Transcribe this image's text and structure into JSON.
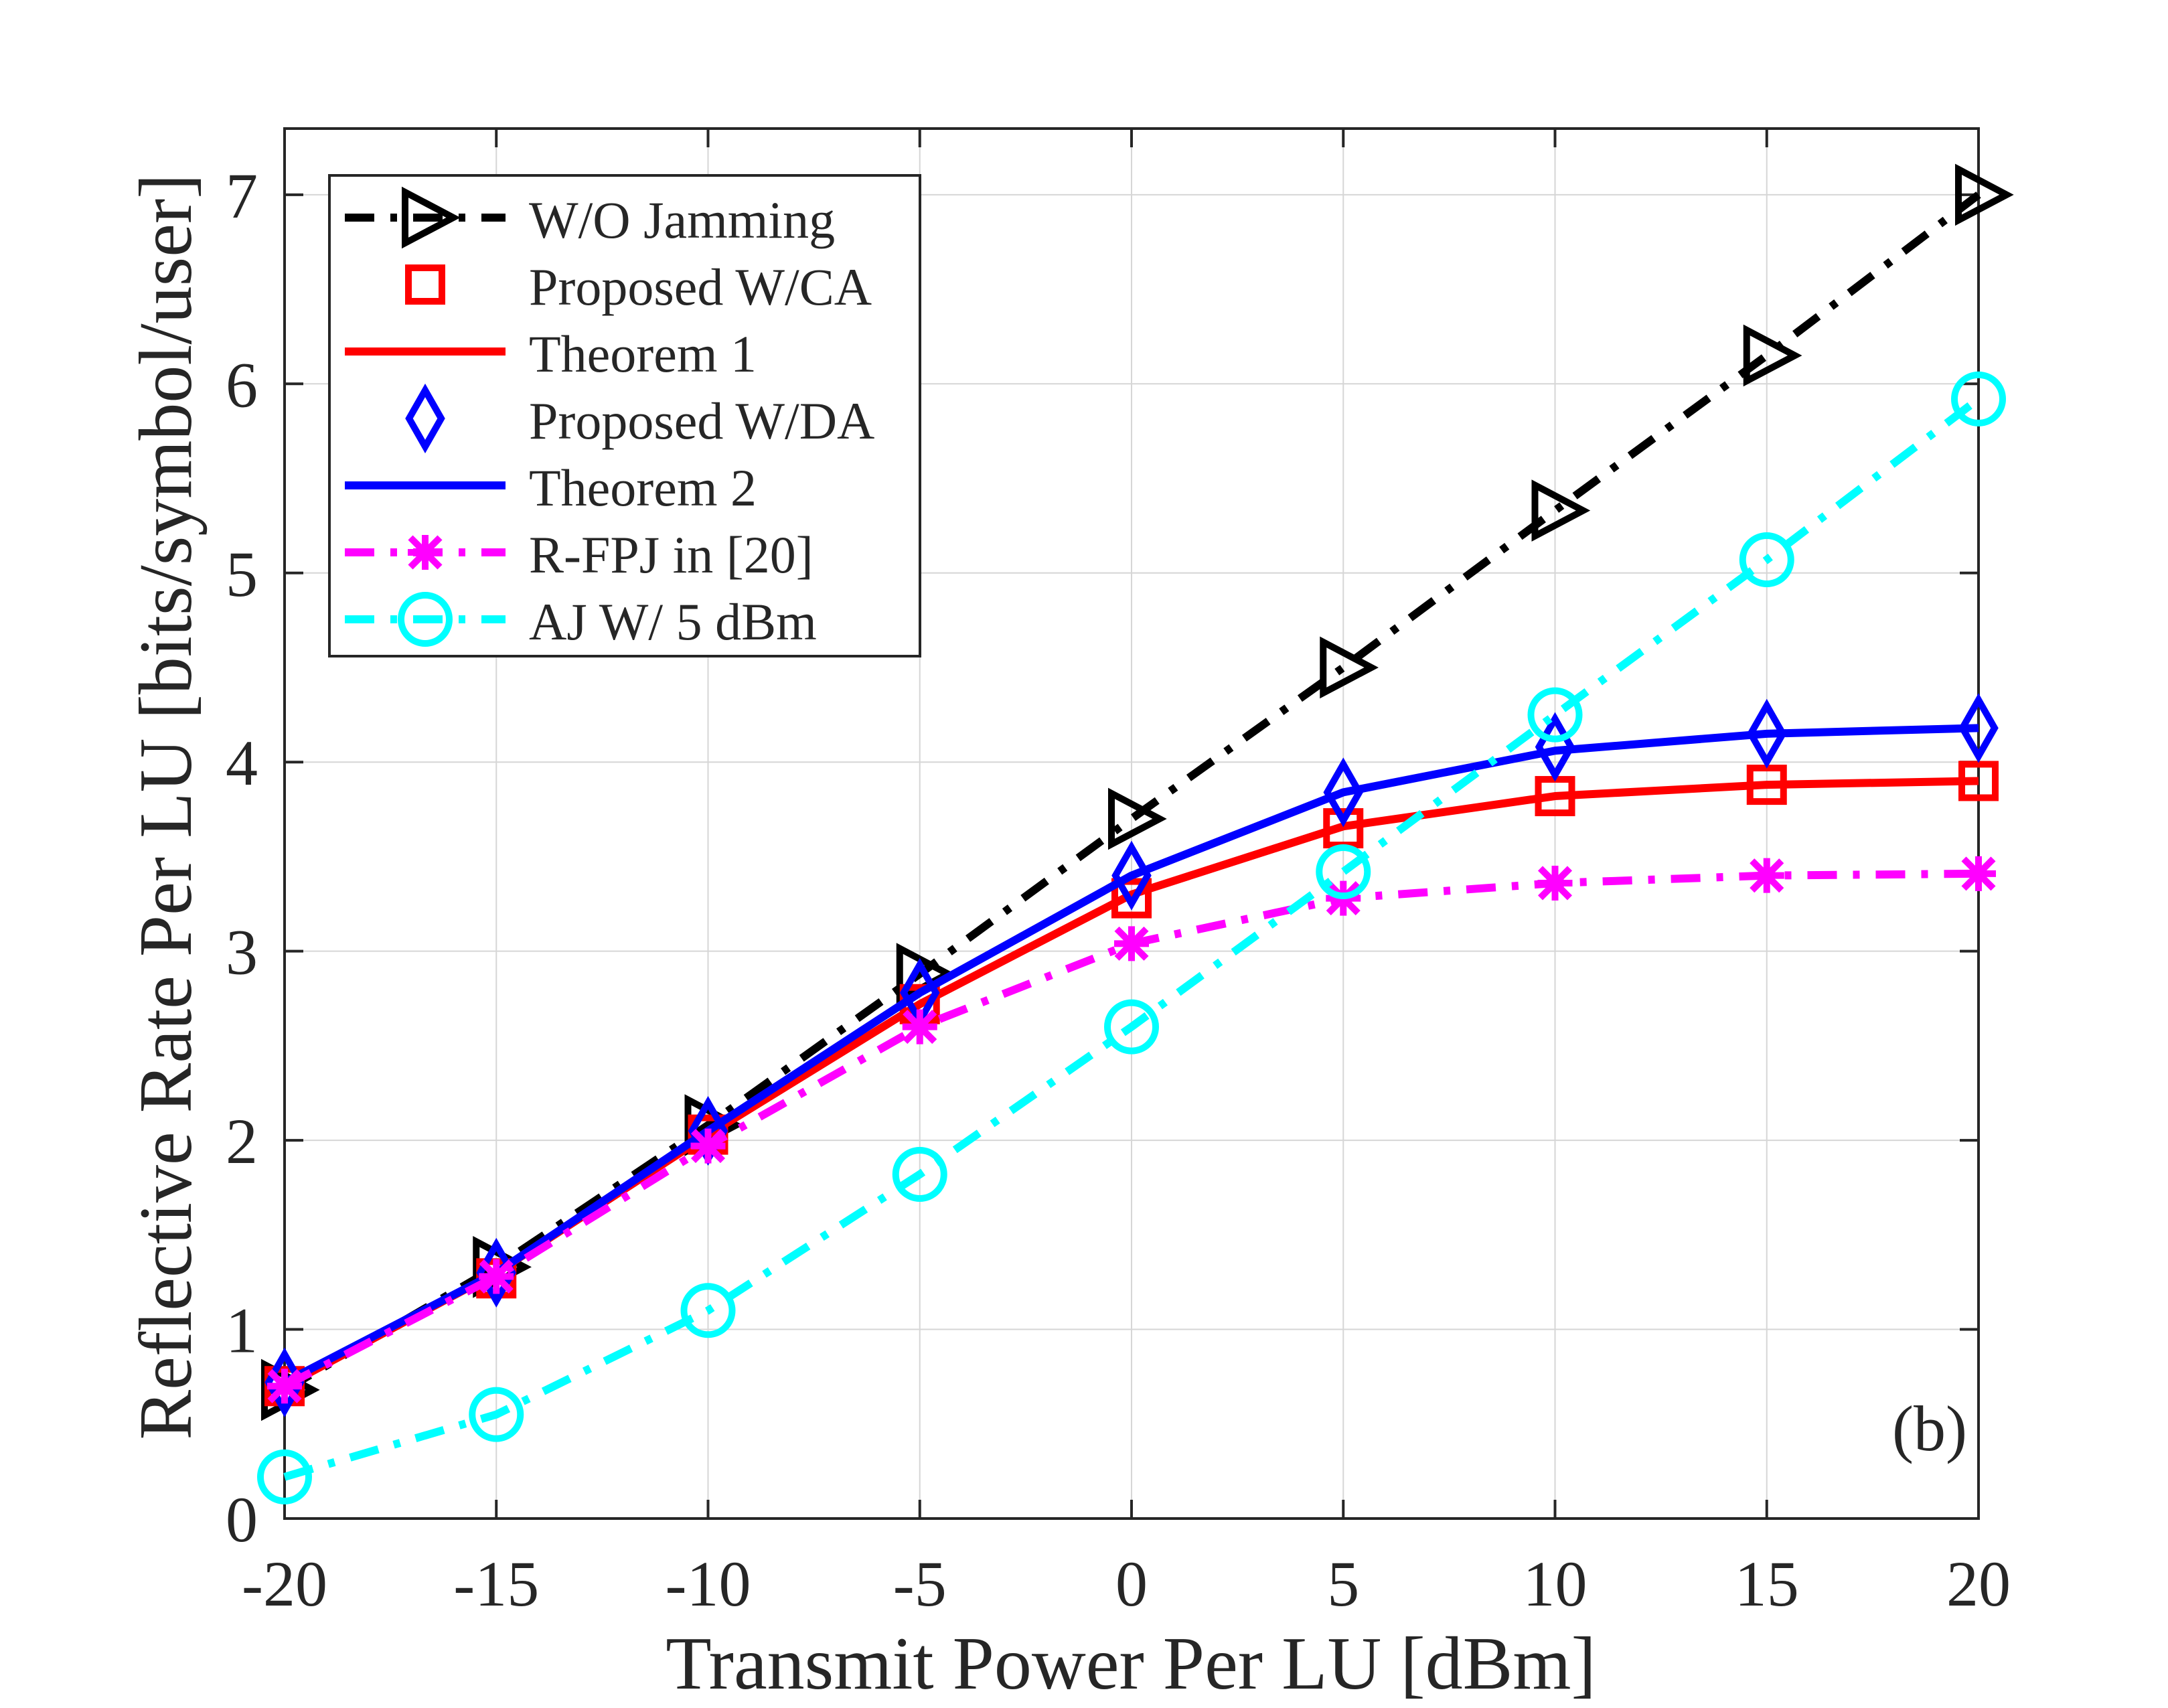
{
  "chart_data": {
    "type": "line",
    "title": "",
    "xlabel": "Transmit Power Per LU [dBm]",
    "ylabel": "Reflective Rate Per LU [bits/symbol/user]",
    "xlim": [
      -20,
      20
    ],
    "ylim": [
      0,
      7.35
    ],
    "xticks": [
      -20,
      -15,
      -10,
      -5,
      0,
      5,
      10,
      15,
      20
    ],
    "yticks": [
      0,
      1,
      2,
      3,
      4,
      5,
      6,
      7
    ],
    "grid": true,
    "annotation": "(b)",
    "legend_position": "top-left",
    "x": [
      -20,
      -15,
      -10,
      -5,
      0,
      5,
      10,
      15,
      20
    ],
    "series": [
      {
        "name": "W/O Jamming",
        "color": "#000000",
        "line": "dashdot",
        "marker": "triangle-right",
        "values": [
          0.68,
          1.33,
          2.08,
          2.88,
          3.7,
          4.5,
          5.33,
          6.15,
          7.0
        ]
      },
      {
        "name": "Proposed W/CA",
        "color": "#ff0000",
        "line": "none",
        "marker": "square",
        "values": [
          0.7,
          1.27,
          2.03,
          2.72,
          3.28,
          3.65,
          3.82,
          3.88,
          3.9
        ]
      },
      {
        "name": "Theorem 1",
        "color": "#ff0000",
        "line": "solid",
        "marker": "none",
        "values": [
          0.7,
          1.3,
          2.03,
          2.72,
          3.3,
          3.66,
          3.82,
          3.88,
          3.9
        ]
      },
      {
        "name": "Proposed W/DA",
        "color": "#0000ff",
        "line": "none",
        "marker": "diamond",
        "values": [
          0.72,
          1.3,
          2.05,
          2.78,
          3.4,
          3.84,
          4.08,
          4.15,
          4.18
        ]
      },
      {
        "name": "Theorem 2",
        "color": "#0000ff",
        "line": "solid",
        "marker": "none",
        "values": [
          0.72,
          1.3,
          2.05,
          2.78,
          3.4,
          3.84,
          4.06,
          4.15,
          4.18
        ]
      },
      {
        "name": "R-FPJ in [20]",
        "color": "#ff00ff",
        "line": "dashdot",
        "marker": "x",
        "values": [
          0.7,
          1.28,
          1.97,
          2.6,
          3.04,
          3.28,
          3.36,
          3.4,
          3.41
        ]
      },
      {
        "name": "AJ W/ 5 dBm",
        "color": "#00ffff",
        "line": "dashdot",
        "marker": "circle",
        "values": [
          0.22,
          0.55,
          1.1,
          1.82,
          2.6,
          3.42,
          4.25,
          5.07,
          5.92
        ]
      }
    ]
  }
}
